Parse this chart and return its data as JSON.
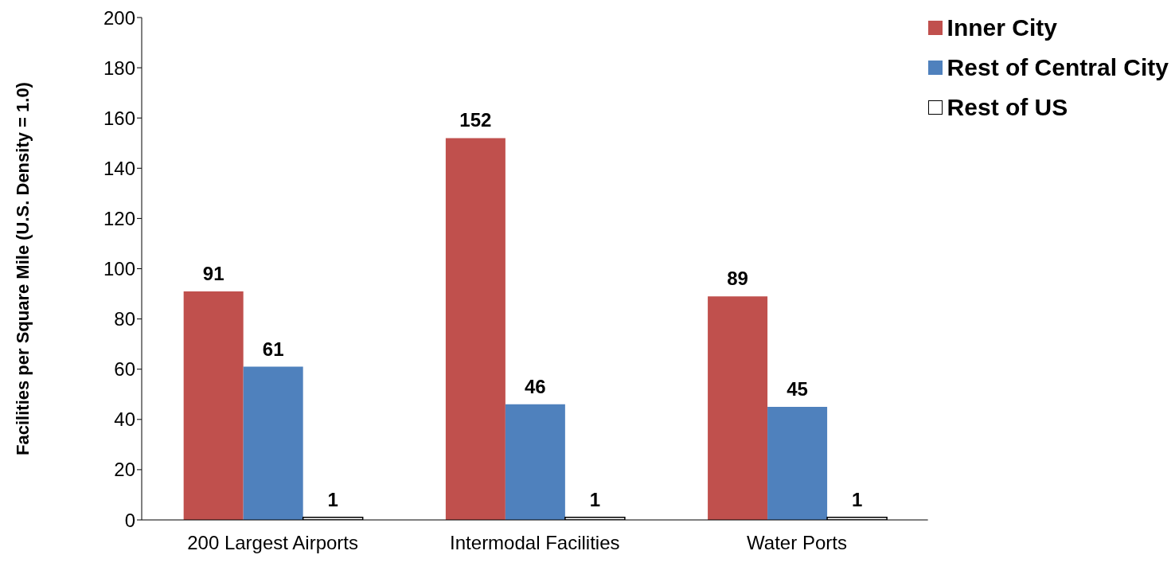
{
  "chart_data": {
    "type": "bar",
    "ylabel": "Facilities per Square Mile (U.S. Density = 1.0)",
    "categories": [
      "200 Largest Airports",
      "Intermodal Facilities",
      "Water Ports"
    ],
    "series": [
      {
        "name": "Inner City",
        "color": "#c0504d",
        "values": [
          91,
          152,
          89
        ]
      },
      {
        "name": "Rest of Central City",
        "color": "#4f81bd",
        "values": [
          61,
          46,
          45
        ]
      },
      {
        "name": "Rest of US",
        "color": "#ffffff",
        "values": [
          1,
          1,
          1
        ]
      }
    ],
    "ylim": [
      0,
      200
    ],
    "yticks": [
      0,
      20,
      40,
      60,
      80,
      100,
      120,
      140,
      160,
      180,
      200
    ],
    "grid": false,
    "legend": "top right",
    "data_labels": true
  }
}
